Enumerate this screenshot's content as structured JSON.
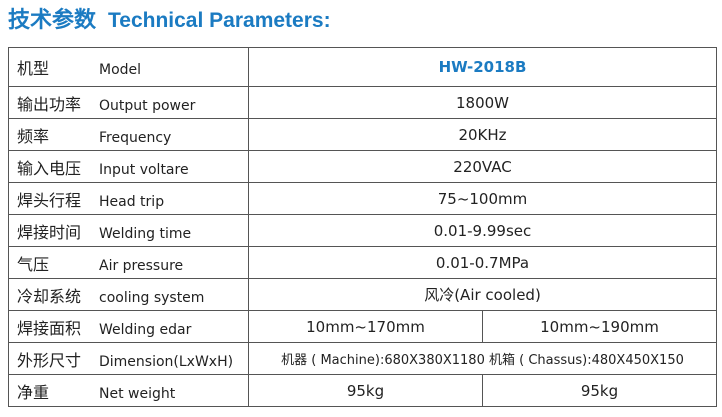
{
  "header": {
    "title_zh": "技术参数",
    "title_en": "Technical Parameters:"
  },
  "table": {
    "rows": [
      {
        "zh": "机型",
        "en": "Model",
        "values": [
          "HW-2018B"
        ]
      },
      {
        "zh": "输出功率",
        "en": "Output power",
        "values": [
          "1800W"
        ]
      },
      {
        "zh": "频率",
        "en": "Frequency",
        "values": [
          "20KHz"
        ]
      },
      {
        "zh": "输入电压",
        "en": "Input voltare",
        "values": [
          "220VAC"
        ]
      },
      {
        "zh": "焊头行程",
        "en": "Head trip",
        "values": [
          "75~100mm"
        ]
      },
      {
        "zh": "焊接时间",
        "en": "Welding time",
        "values": [
          "0.01-9.99sec"
        ]
      },
      {
        "zh": "气压",
        "en": "Air pressure",
        "values": [
          "0.01-0.7MPa"
        ]
      },
      {
        "zh": "冷却系统",
        "en": "cooling system",
        "values": [
          "风冷(Air cooled)"
        ]
      },
      {
        "zh": "焊接面积",
        "en": "Welding edar",
        "values": [
          "10mm~170mm",
          "10mm~190mm"
        ]
      },
      {
        "zh": "外形尺寸",
        "en": "Dimension(LxWxH)",
        "values": [
          "机器 ( Machine):680X380X1180 机箱 ( Chassus):480X450X150"
        ]
      },
      {
        "zh": "净重",
        "en": "Net weight",
        "values": [
          "95kg",
          "95kg"
        ]
      }
    ]
  }
}
